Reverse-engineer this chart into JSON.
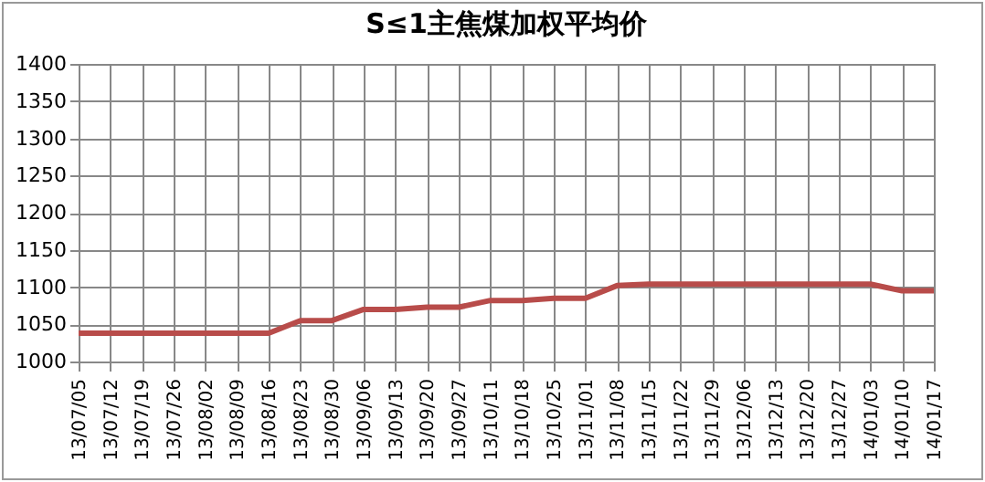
{
  "chart_data": {
    "type": "line",
    "title": "S≤1主焦煤加权平均价",
    "categories": [
      "13/07/05",
      "13/07/12",
      "13/07/19",
      "13/07/26",
      "13/08/02",
      "13/08/09",
      "13/08/16",
      "13/08/23",
      "13/08/30",
      "13/09/06",
      "13/09/13",
      "13/09/20",
      "13/09/27",
      "13/10/11",
      "13/10/18",
      "13/10/25",
      "13/11/01",
      "13/11/08",
      "13/11/15",
      "13/11/22",
      "13/11/29",
      "13/12/06",
      "13/12/13",
      "13/12/20",
      "13/12/27",
      "14/01/03",
      "14/01/10",
      "14/01/17"
    ],
    "series": [
      {
        "color": "#b84c4a",
        "values": [
          1038,
          1038,
          1038,
          1038,
          1038,
          1038,
          1038,
          1055,
          1055,
          1070,
          1070,
          1073,
          1073,
          1082,
          1082,
          1085,
          1085,
          1102,
          1104,
          1104,
          1104,
          1104,
          1104,
          1104,
          1104,
          1104,
          1095,
          1095
        ]
      }
    ],
    "ylim": [
      1000,
      1400
    ],
    "yticks": [
      1000,
      1050,
      1100,
      1150,
      1200,
      1250,
      1300,
      1350,
      1400
    ],
    "grid": true,
    "legend": false,
    "marker": "none",
    "line_style": "solid"
  }
}
